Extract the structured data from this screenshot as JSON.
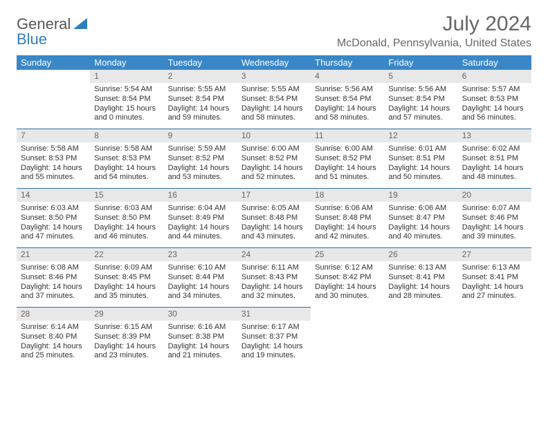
{
  "brand": {
    "part1": "General",
    "part2": "Blue"
  },
  "title": "July 2024",
  "location": "McDonald, Pennsylvania, United States",
  "day_names": [
    "Sunday",
    "Monday",
    "Tuesday",
    "Wednesday",
    "Thursday",
    "Friday",
    "Saturday"
  ],
  "colors": {
    "header_bg": "#3a87c8",
    "header_text": "#ffffff",
    "daynum_bg": "#e8e8e8",
    "daynum_text": "#666666",
    "cell_border": "#2f6da0",
    "body_text": "#333333",
    "title_text": "#666666"
  },
  "weeks": [
    [
      null,
      {
        "n": "1",
        "sr": "Sunrise: 5:54 AM",
        "ss": "Sunset: 8:54 PM",
        "dl1": "Daylight: 15 hours",
        "dl2": "and 0 minutes."
      },
      {
        "n": "2",
        "sr": "Sunrise: 5:55 AM",
        "ss": "Sunset: 8:54 PM",
        "dl1": "Daylight: 14 hours",
        "dl2": "and 59 minutes."
      },
      {
        "n": "3",
        "sr": "Sunrise: 5:55 AM",
        "ss": "Sunset: 8:54 PM",
        "dl1": "Daylight: 14 hours",
        "dl2": "and 58 minutes."
      },
      {
        "n": "4",
        "sr": "Sunrise: 5:56 AM",
        "ss": "Sunset: 8:54 PM",
        "dl1": "Daylight: 14 hours",
        "dl2": "and 58 minutes."
      },
      {
        "n": "5",
        "sr": "Sunrise: 5:56 AM",
        "ss": "Sunset: 8:54 PM",
        "dl1": "Daylight: 14 hours",
        "dl2": "and 57 minutes."
      },
      {
        "n": "6",
        "sr": "Sunrise: 5:57 AM",
        "ss": "Sunset: 8:53 PM",
        "dl1": "Daylight: 14 hours",
        "dl2": "and 56 minutes."
      }
    ],
    [
      {
        "n": "7",
        "sr": "Sunrise: 5:58 AM",
        "ss": "Sunset: 8:53 PM",
        "dl1": "Daylight: 14 hours",
        "dl2": "and 55 minutes."
      },
      {
        "n": "8",
        "sr": "Sunrise: 5:58 AM",
        "ss": "Sunset: 8:53 PM",
        "dl1": "Daylight: 14 hours",
        "dl2": "and 54 minutes."
      },
      {
        "n": "9",
        "sr": "Sunrise: 5:59 AM",
        "ss": "Sunset: 8:52 PM",
        "dl1": "Daylight: 14 hours",
        "dl2": "and 53 minutes."
      },
      {
        "n": "10",
        "sr": "Sunrise: 6:00 AM",
        "ss": "Sunset: 8:52 PM",
        "dl1": "Daylight: 14 hours",
        "dl2": "and 52 minutes."
      },
      {
        "n": "11",
        "sr": "Sunrise: 6:00 AM",
        "ss": "Sunset: 8:52 PM",
        "dl1": "Daylight: 14 hours",
        "dl2": "and 51 minutes."
      },
      {
        "n": "12",
        "sr": "Sunrise: 6:01 AM",
        "ss": "Sunset: 8:51 PM",
        "dl1": "Daylight: 14 hours",
        "dl2": "and 50 minutes."
      },
      {
        "n": "13",
        "sr": "Sunrise: 6:02 AM",
        "ss": "Sunset: 8:51 PM",
        "dl1": "Daylight: 14 hours",
        "dl2": "and 48 minutes."
      }
    ],
    [
      {
        "n": "14",
        "sr": "Sunrise: 6:03 AM",
        "ss": "Sunset: 8:50 PM",
        "dl1": "Daylight: 14 hours",
        "dl2": "and 47 minutes."
      },
      {
        "n": "15",
        "sr": "Sunrise: 6:03 AM",
        "ss": "Sunset: 8:50 PM",
        "dl1": "Daylight: 14 hours",
        "dl2": "and 46 minutes."
      },
      {
        "n": "16",
        "sr": "Sunrise: 6:04 AM",
        "ss": "Sunset: 8:49 PM",
        "dl1": "Daylight: 14 hours",
        "dl2": "and 44 minutes."
      },
      {
        "n": "17",
        "sr": "Sunrise: 6:05 AM",
        "ss": "Sunset: 8:48 PM",
        "dl1": "Daylight: 14 hours",
        "dl2": "and 43 minutes."
      },
      {
        "n": "18",
        "sr": "Sunrise: 6:06 AM",
        "ss": "Sunset: 8:48 PM",
        "dl1": "Daylight: 14 hours",
        "dl2": "and 42 minutes."
      },
      {
        "n": "19",
        "sr": "Sunrise: 6:06 AM",
        "ss": "Sunset: 8:47 PM",
        "dl1": "Daylight: 14 hours",
        "dl2": "and 40 minutes."
      },
      {
        "n": "20",
        "sr": "Sunrise: 6:07 AM",
        "ss": "Sunset: 8:46 PM",
        "dl1": "Daylight: 14 hours",
        "dl2": "and 39 minutes."
      }
    ],
    [
      {
        "n": "21",
        "sr": "Sunrise: 6:08 AM",
        "ss": "Sunset: 8:46 PM",
        "dl1": "Daylight: 14 hours",
        "dl2": "and 37 minutes."
      },
      {
        "n": "22",
        "sr": "Sunrise: 6:09 AM",
        "ss": "Sunset: 8:45 PM",
        "dl1": "Daylight: 14 hours",
        "dl2": "and 35 minutes."
      },
      {
        "n": "23",
        "sr": "Sunrise: 6:10 AM",
        "ss": "Sunset: 8:44 PM",
        "dl1": "Daylight: 14 hours",
        "dl2": "and 34 minutes."
      },
      {
        "n": "24",
        "sr": "Sunrise: 6:11 AM",
        "ss": "Sunset: 8:43 PM",
        "dl1": "Daylight: 14 hours",
        "dl2": "and 32 minutes."
      },
      {
        "n": "25",
        "sr": "Sunrise: 6:12 AM",
        "ss": "Sunset: 8:42 PM",
        "dl1": "Daylight: 14 hours",
        "dl2": "and 30 minutes."
      },
      {
        "n": "26",
        "sr": "Sunrise: 6:13 AM",
        "ss": "Sunset: 8:41 PM",
        "dl1": "Daylight: 14 hours",
        "dl2": "and 28 minutes."
      },
      {
        "n": "27",
        "sr": "Sunrise: 6:13 AM",
        "ss": "Sunset: 8:41 PM",
        "dl1": "Daylight: 14 hours",
        "dl2": "and 27 minutes."
      }
    ],
    [
      {
        "n": "28",
        "sr": "Sunrise: 6:14 AM",
        "ss": "Sunset: 8:40 PM",
        "dl1": "Daylight: 14 hours",
        "dl2": "and 25 minutes."
      },
      {
        "n": "29",
        "sr": "Sunrise: 6:15 AM",
        "ss": "Sunset: 8:39 PM",
        "dl1": "Daylight: 14 hours",
        "dl2": "and 23 minutes."
      },
      {
        "n": "30",
        "sr": "Sunrise: 6:16 AM",
        "ss": "Sunset: 8:38 PM",
        "dl1": "Daylight: 14 hours",
        "dl2": "and 21 minutes."
      },
      {
        "n": "31",
        "sr": "Sunrise: 6:17 AM",
        "ss": "Sunset: 8:37 PM",
        "dl1": "Daylight: 14 hours",
        "dl2": "and 19 minutes."
      },
      null,
      null,
      null
    ]
  ]
}
